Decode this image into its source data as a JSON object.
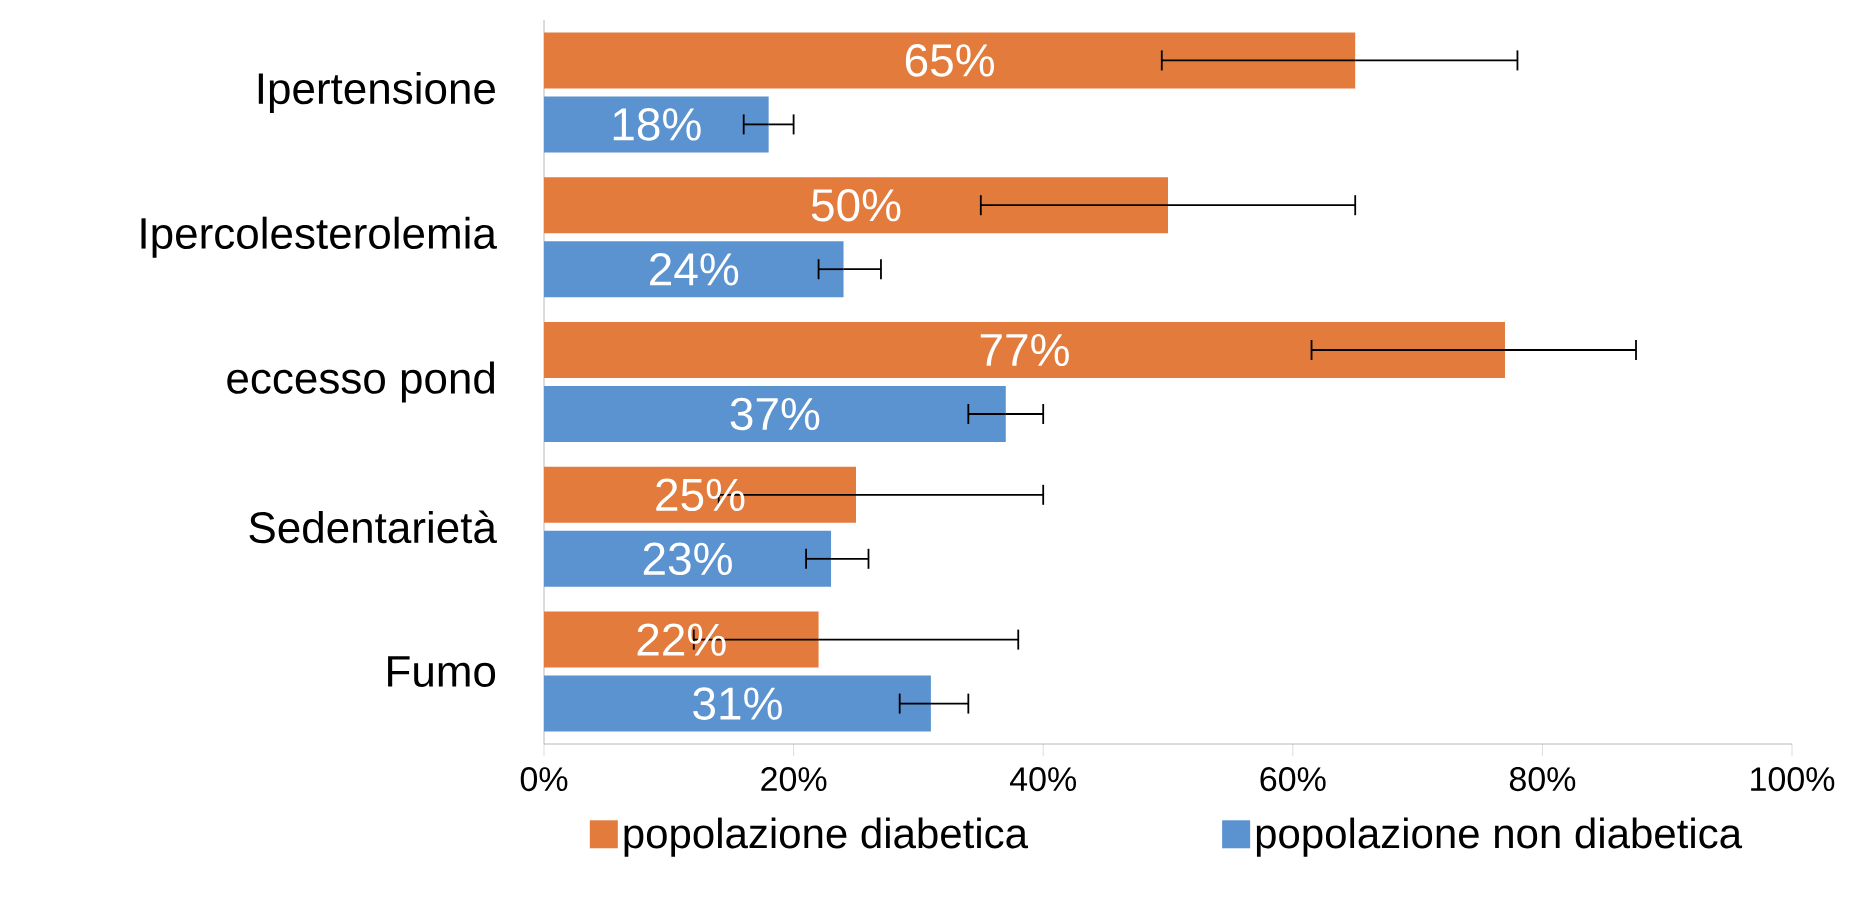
{
  "chart_data": {
    "type": "bar",
    "orientation": "horizontal",
    "categories": [
      "Ipertensione",
      "Ipercolesterolemia",
      "eccesso pond",
      "Sedentarietà",
      "Fumo"
    ],
    "series": [
      {
        "name": "popolazione diabetica",
        "color": "#e27b3c",
        "values": [
          65,
          50,
          77,
          25,
          22
        ],
        "value_labels": [
          "65%",
          "50%",
          "77%",
          "25%",
          "22%"
        ],
        "errors": [
          [
            49.5,
            78
          ],
          [
            35,
            65
          ],
          [
            61.5,
            87.5
          ],
          [
            14,
            40
          ],
          [
            12,
            38
          ]
        ]
      },
      {
        "name": "popolazione non diabetica",
        "color": "#5b92d0",
        "values": [
          18,
          24,
          37,
          23,
          31
        ],
        "value_labels": [
          "18%",
          "24%",
          "37%",
          "23%",
          "31%"
        ],
        "errors": [
          [
            16,
            20
          ],
          [
            22,
            27
          ],
          [
            34,
            40
          ],
          [
            21,
            26
          ],
          [
            28.5,
            34
          ]
        ]
      }
    ],
    "xlim": [
      0,
      100
    ],
    "xticks": [
      {
        "value": 0,
        "label": "0%"
      },
      {
        "value": 20,
        "label": "20%"
      },
      {
        "value": 40,
        "label": "40%"
      },
      {
        "value": 60,
        "label": "60%"
      },
      {
        "value": 80,
        "label": "80%"
      },
      {
        "value": 100,
        "label": "100%"
      }
    ],
    "legend": "bottom",
    "grid": false
  }
}
